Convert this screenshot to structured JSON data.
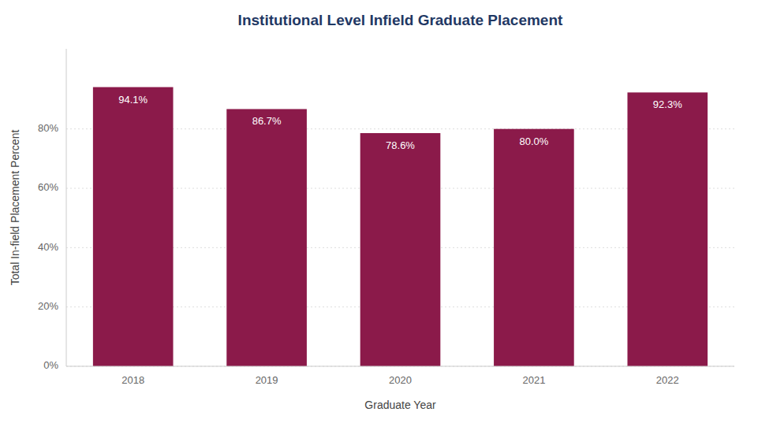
{
  "chart_data": {
    "type": "bar",
    "title": "Institutional Level Infield Graduate Placement",
    "xlabel": "Graduate Year",
    "ylabel": "Total In-field Placement Percent",
    "categories": [
      "2018",
      "2019",
      "2020",
      "2021",
      "2022"
    ],
    "values": [
      94.1,
      86.7,
      78.6,
      80.0,
      92.3
    ],
    "value_labels": [
      "94.1%",
      "86.7%",
      "78.6%",
      "80.0%",
      "92.3%"
    ],
    "data_labels": true,
    "color": "#8B1A4A",
    "ylim": [
      0,
      107
    ],
    "yticks": [
      {
        "value": 0,
        "label": "0%"
      },
      {
        "value": 20,
        "label": "20%"
      },
      {
        "value": 40,
        "label": "40%"
      },
      {
        "value": 60,
        "label": "60%"
      },
      {
        "value": 80,
        "label": "80%"
      }
    ],
    "grid": true
  }
}
